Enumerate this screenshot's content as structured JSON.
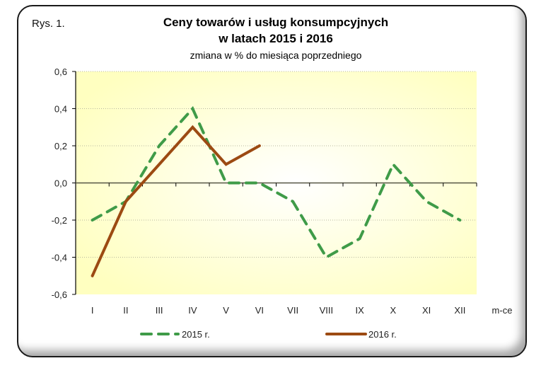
{
  "figure": {
    "label": "Rys. 1.",
    "title_line1": "Ceny towarów i usług konsumpcyjnych",
    "title_line2": "w latach 2015 i 2016",
    "subtitle": "zmiana w % do miesiąca poprzedniego"
  },
  "colors": {
    "series_2015": "#3f9b48",
    "series_2016": "#9c4a12",
    "plot_bg_edge": "#ffffc0",
    "plot_bg_center": "#ffffff",
    "gridline": "#b8b8a0",
    "zero_line": "#555544"
  },
  "chart_data": {
    "type": "line",
    "title": "Ceny towarów i usług konsumpcyjnych w latach 2015 i 2016",
    "subtitle": "zmiana w % do miesiąca poprzedniego",
    "xlabel": "m-ce",
    "ylabel": "",
    "categories": [
      "I",
      "II",
      "III",
      "IV",
      "V",
      "VI",
      "VII",
      "VIII",
      "IX",
      "X",
      "XI",
      "XII"
    ],
    "ylim": [
      -0.6,
      0.6
    ],
    "yticks": [
      0.6,
      0.4,
      0.2,
      0.0,
      -0.2,
      -0.4,
      -0.6
    ],
    "ytick_labels": [
      "0,6",
      "0,4",
      "0,2",
      "0,0",
      "-0,2",
      "-0,4",
      "-0,6"
    ],
    "grid": "horizontal dotted",
    "legend_position": "bottom",
    "series": [
      {
        "name": "2015 r.",
        "style": "dashed",
        "values": [
          -0.2,
          -0.1,
          0.2,
          0.4,
          0.0,
          0.0,
          -0.1,
          -0.4,
          -0.3,
          0.1,
          -0.1,
          -0.2
        ]
      },
      {
        "name": "2016 r.",
        "style": "solid",
        "values": [
          -0.5,
          -0.1,
          0.1,
          0.3,
          0.1,
          0.2
        ]
      }
    ]
  }
}
